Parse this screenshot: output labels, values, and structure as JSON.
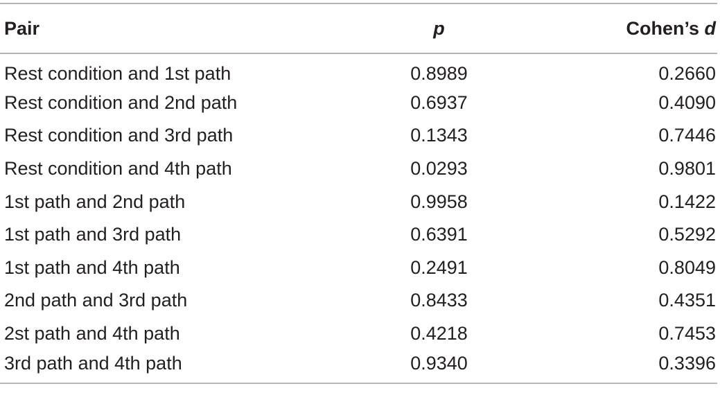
{
  "table": {
    "headers": {
      "pair": "Pair",
      "p": "p",
      "cohens_prefix": "Cohen’s ",
      "cohens_var": "d"
    },
    "rows": [
      {
        "pair": "Rest condition and 1st path",
        "p": "0.8989",
        "d": "0.2660"
      },
      {
        "pair": "Rest condition and 2nd path",
        "p": "0.6937",
        "d": "0.4090"
      },
      {
        "pair": "Rest condition and 3rd path",
        "p": "0.1343",
        "d": "0.7446"
      },
      {
        "pair": "Rest condition and 4th path",
        "p": "0.0293",
        "d": "0.9801"
      },
      {
        "pair": "1st path and 2nd path",
        "p": "0.9958",
        "d": "0.1422"
      },
      {
        "pair": "1st path and 3rd path",
        "p": "0.6391",
        "d": "0.5292"
      },
      {
        "pair": "1st path and 4th path",
        "p": "0.2491",
        "d": "0.8049"
      },
      {
        "pair": "2nd path and 3rd path",
        "p": "0.8433",
        "d": "0.4351"
      },
      {
        "pair": "2st path and 4th path",
        "p": "0.4218",
        "d": "0.7453"
      },
      {
        "pair": "3rd path and 4th path",
        "p": "0.9340",
        "d": "0.3396"
      }
    ]
  }
}
